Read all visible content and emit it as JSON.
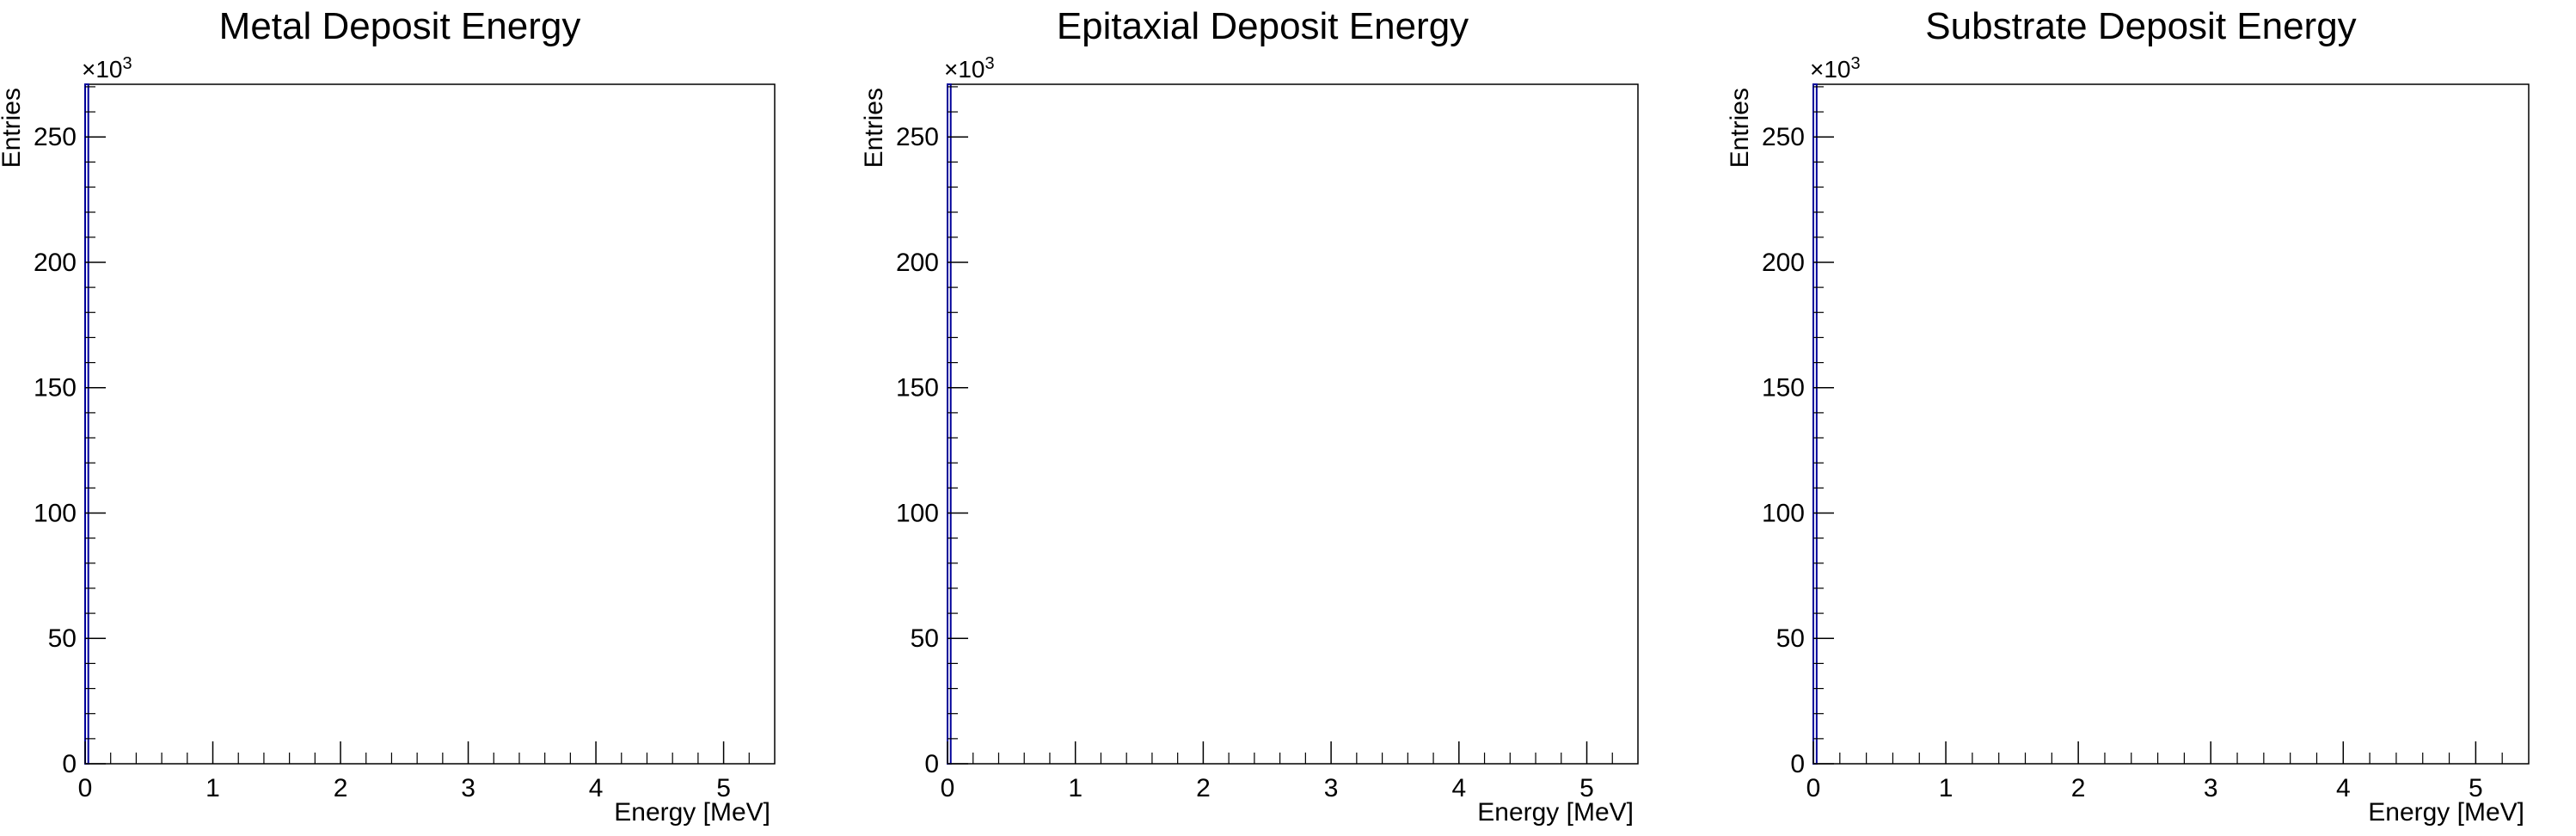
{
  "chart_data": [
    {
      "type": "bar",
      "title": "Metal Deposit Energy",
      "xlabel": "Energy [MeV]",
      "ylabel": "Entries",
      "y_multiplier_label": "×10",
      "y_multiplier_exponent": "3",
      "xlim": [
        0,
        5.4
      ],
      "ylim": [
        0,
        271
      ],
      "x_ticks": [
        "0",
        "1",
        "2",
        "3",
        "4",
        "5"
      ],
      "y_ticks": [
        "0",
        "50",
        "100",
        "150",
        "200",
        "250"
      ],
      "grid": false,
      "series": [
        {
          "x_range": [
            0,
            0.025
          ],
          "value": 271,
          "color": "#000099"
        }
      ]
    },
    {
      "type": "bar",
      "title": "Epitaxial Deposit Energy",
      "xlabel": "Energy [MeV]",
      "ylabel": "Entries",
      "y_multiplier_label": "×10",
      "y_multiplier_exponent": "3",
      "xlim": [
        0,
        5.4
      ],
      "ylim": [
        0,
        271
      ],
      "x_ticks": [
        "0",
        "1",
        "2",
        "3",
        "4",
        "5"
      ],
      "y_ticks": [
        "0",
        "50",
        "100",
        "150",
        "200",
        "250"
      ],
      "grid": false,
      "series": [
        {
          "x_range": [
            0,
            0.025
          ],
          "value": 271,
          "color": "#000099"
        }
      ]
    },
    {
      "type": "bar",
      "title": "Substrate Deposit Energy",
      "xlabel": "Energy [MeV]",
      "ylabel": "Entries",
      "y_multiplier_label": "×10",
      "y_multiplier_exponent": "3",
      "xlim": [
        0,
        5.4
      ],
      "ylim": [
        0,
        271
      ],
      "x_ticks": [
        "0",
        "1",
        "2",
        "3",
        "4",
        "5"
      ],
      "y_ticks": [
        "0",
        "50",
        "100",
        "150",
        "200",
        "250"
      ],
      "grid": false,
      "series": [
        {
          "x_range": [
            0,
            0.025
          ],
          "value": 271,
          "color": "#000099"
        }
      ]
    }
  ]
}
